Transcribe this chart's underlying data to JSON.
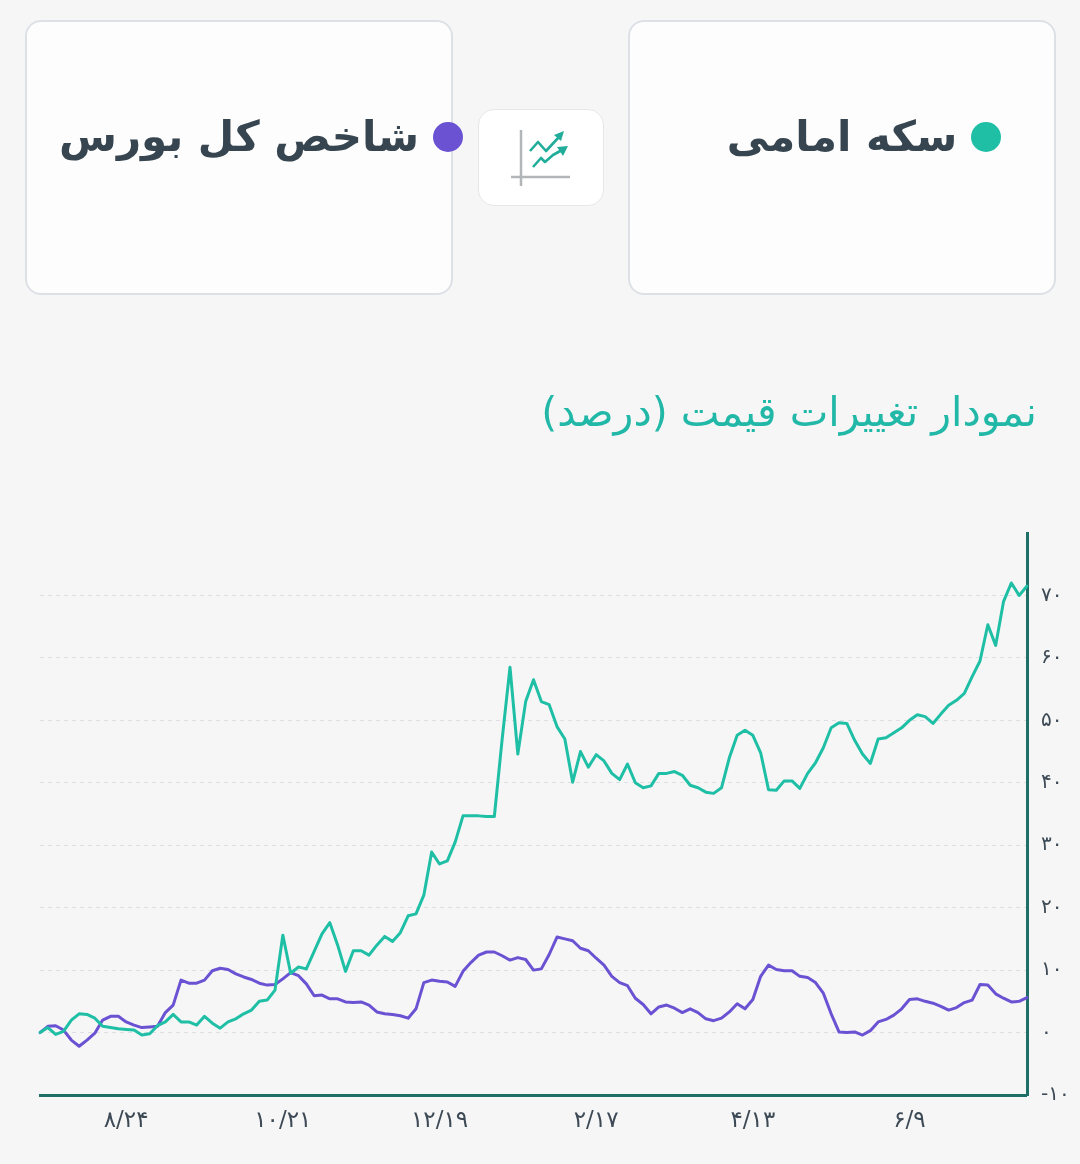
{
  "chart_data": {
    "type": "line",
    "title": "نمودار تغییرات قیمت (درصد)",
    "categories": [
      null,
      null,
      null,
      null,
      null,
      null,
      null,
      null,
      null,
      null,
      null,
      "۸/۲۴",
      null,
      null,
      null,
      null,
      null,
      null,
      null,
      null,
      null,
      null,
      null,
      null,
      null,
      null,
      null,
      null,
      null,
      null,
      null,
      "۱۰/۲۱",
      null,
      null,
      null,
      null,
      null,
      null,
      null,
      null,
      null,
      null,
      null,
      null,
      null,
      null,
      null,
      null,
      null,
      null,
      null,
      "۱۲/۱۹",
      null,
      null,
      null,
      null,
      null,
      null,
      null,
      null,
      null,
      null,
      null,
      null,
      null,
      null,
      null,
      null,
      null,
      null,
      null,
      "۲/۱۷",
      null,
      null,
      null,
      null,
      null,
      null,
      null,
      null,
      null,
      null,
      null,
      null,
      null,
      null,
      null,
      null,
      null,
      null,
      null,
      "۴/۱۳",
      null,
      null,
      null,
      null,
      null,
      null,
      null,
      null,
      null,
      null,
      null,
      null,
      null,
      null,
      null,
      null,
      null,
      null,
      null,
      "۶/۹",
      null,
      null,
      null,
      null,
      null,
      null,
      null,
      null,
      null,
      null,
      null,
      null,
      null,
      null,
      null
    ],
    "series": [
      {
        "name": "سکه امامی",
        "color": "#1fbfa6",
        "values": [
          0,
          0.8,
          -0.3,
          0.2,
          2.0,
          3.0,
          2.9,
          2.3,
          1.0,
          0.8,
          0.6,
          0.5,
          0.4,
          -0.4,
          -0.2,
          1.1,
          1.7,
          2.9,
          1.7,
          1.7,
          1.2,
          2.6,
          1.5,
          0.7,
          1.7,
          2.2,
          3.0,
          3.6,
          5.0,
          5.2,
          6.8,
          15.6,
          9.5,
          10.5,
          10.2,
          13.0,
          15.8,
          17.6,
          14.0,
          9.8,
          13.1,
          13.1,
          12.4,
          14.0,
          15.4,
          14.6,
          16.0,
          18.7,
          19.0,
          22.0,
          28.9,
          27.0,
          27.5,
          30.5,
          34.7,
          34.7,
          34.7,
          34.6,
          34.6,
          47.0,
          58.5,
          44.6,
          53.0,
          56.5,
          53.0,
          52.5,
          49.0,
          47.0,
          40.1,
          45.0,
          42.5,
          44.5,
          43.5,
          41.5,
          40.5,
          43.0,
          40.0,
          39.2,
          39.5,
          41.5,
          41.5,
          41.8,
          41.2,
          39.6,
          39.2,
          38.5,
          38.3,
          39.2,
          44.0,
          47.6,
          48.4,
          47.6,
          44.8,
          38.9,
          38.8,
          40.3,
          40.3,
          39.1,
          41.5,
          43.2,
          45.6,
          48.8,
          49.6,
          49.5,
          46.8,
          44.6,
          43.1,
          47.0,
          47.2,
          48.0,
          48.8,
          50.0,
          50.9,
          50.6,
          49.5,
          51.0,
          52.4,
          53.2,
          54.3,
          57.0,
          59.5,
          65.3,
          62.0,
          69.0,
          72.0,
          70.0,
          71.5
        ]
      },
      {
        "name": "شاخص کل بورس",
        "color": "#6a52d3",
        "values": [
          0,
          1.0,
          1.1,
          0.4,
          -1.2,
          -2.2,
          -1.2,
          -0.1,
          2.0,
          2.6,
          2.6,
          1.7,
          1.2,
          0.8,
          0.9,
          1.0,
          3.2,
          4.4,
          8.4,
          7.9,
          7.9,
          8.4,
          9.9,
          10.3,
          10.1,
          9.4,
          8.9,
          8.5,
          7.9,
          7.6,
          7.7,
          8.6,
          9.6,
          9.1,
          7.8,
          5.9,
          6.0,
          5.4,
          5.4,
          4.9,
          4.8,
          4.9,
          4.4,
          3.3,
          3.0,
          2.9,
          2.7,
          2.3,
          3.8,
          8.0,
          8.4,
          8.2,
          8.1,
          7.4,
          9.8,
          11.2,
          12.4,
          12.9,
          12.9,
          12.3,
          11.6,
          12.0,
          11.7,
          10.0,
          10.2,
          12.5,
          15.3,
          15.0,
          14.7,
          13.5,
          13.1,
          11.9,
          10.8,
          9.0,
          8.0,
          7.5,
          5.5,
          4.5,
          3.0,
          4.1,
          4.4,
          3.9,
          3.2,
          3.8,
          3.2,
          2.2,
          1.9,
          2.3,
          3.3,
          4.6,
          3.8,
          5.3,
          9.0,
          10.8,
          10.1,
          9.9,
          9.9,
          9.0,
          8.8,
          8.0,
          6.3,
          3.0,
          0.1,
          0.0,
          0.1,
          -0.4,
          0.3,
          1.7,
          2.1,
          2.8,
          3.8,
          5.3,
          5.4,
          5.0,
          4.7,
          4.2,
          3.6,
          4.0,
          4.8,
          5.2,
          7.7,
          7.6,
          6.2,
          5.5,
          4.9,
          5.0,
          5.6
        ]
      }
    ],
    "ylim": [
      -10,
      80
    ],
    "yticks": [
      {
        "value": -10,
        "label": "-۱۰"
      },
      {
        "value": 0,
        "label": "۰"
      },
      {
        "value": 10,
        "label": "۱۰"
      },
      {
        "value": 20,
        "label": "۲۰"
      },
      {
        "value": 30,
        "label": "۳۰"
      },
      {
        "value": 40,
        "label": "۴۰"
      },
      {
        "value": 50,
        "label": "۵۰"
      },
      {
        "value": 60,
        "label": "۶۰"
      },
      {
        "value": 70,
        "label": "۷۰"
      }
    ],
    "grid": true,
    "legend": "top"
  }
}
